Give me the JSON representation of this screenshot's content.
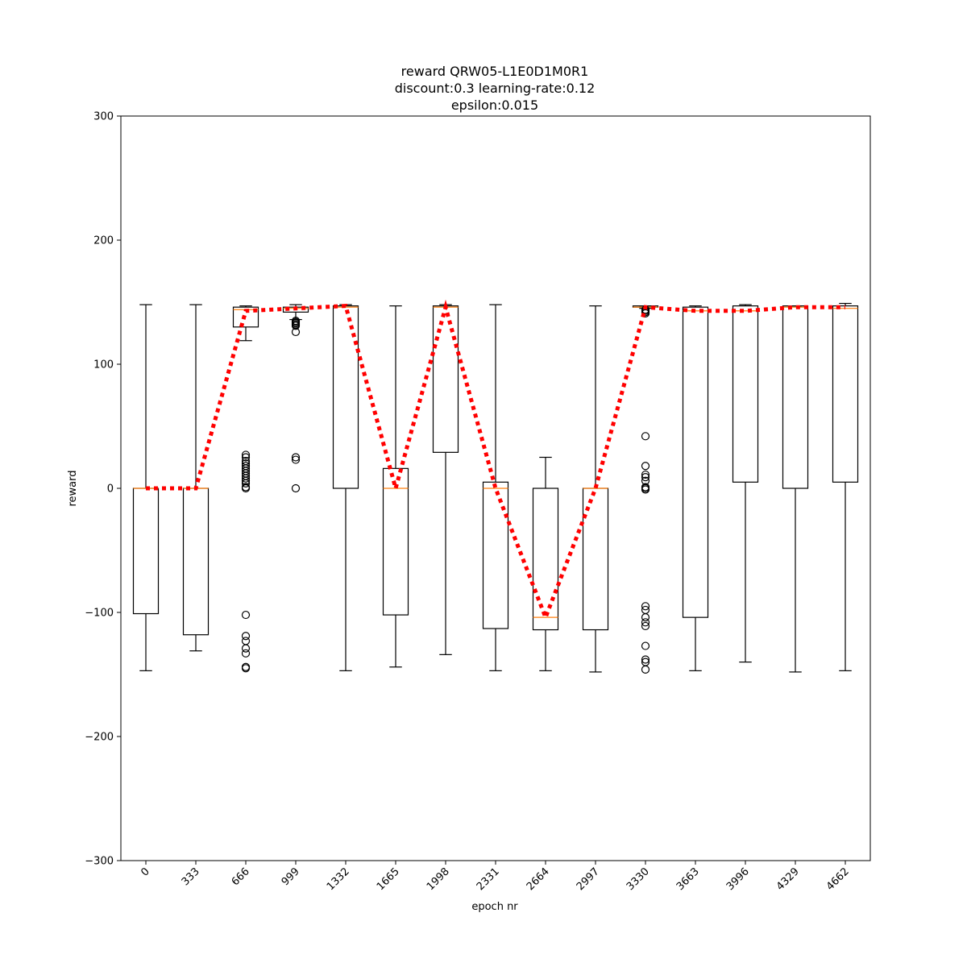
{
  "chart_data": {
    "type": "box",
    "title": [
      "reward QRW05-L1E0D1M0R1",
      "discount:0.3 learning-rate:0.12",
      "epsilon:0.015"
    ],
    "xlabel": "epoch nr",
    "ylabel": "reward",
    "ylim": [
      -300,
      300
    ],
    "yticks": [
      -300,
      -200,
      -100,
      0,
      100,
      200,
      300
    ],
    "ytick_labels": [
      "−300",
      "−200",
      "−100",
      "0",
      "100",
      "200",
      "300"
    ],
    "grid": false,
    "categories": [
      "0",
      "333",
      "666",
      "999",
      "1332",
      "1665",
      "1998",
      "2331",
      "2664",
      "2997",
      "3330",
      "3663",
      "3996",
      "4329",
      "4662"
    ],
    "boxes": [
      {
        "whislo": -147,
        "q1": -101,
        "med": 0,
        "q3": 0,
        "whishi": 148,
        "fliers": []
      },
      {
        "whislo": -131,
        "q1": -118,
        "med": 0,
        "q3": 0,
        "whishi": 148,
        "fliers": []
      },
      {
        "whislo": 119,
        "q1": 130,
        "med": 144,
        "q3": 146,
        "whishi": 147,
        "fliers": [
          27,
          25,
          22,
          20,
          18,
          16,
          14,
          12,
          10,
          8,
          6,
          4,
          1,
          0,
          -102,
          -119,
          -123,
          -129,
          -133,
          -144,
          -145
        ]
      },
      {
        "whislo": 136,
        "q1": 142,
        "med": 145,
        "q3": 146,
        "whishi": 148,
        "fliers": [
          135,
          134,
          133,
          132,
          131,
          126,
          25,
          23,
          0
        ]
      },
      {
        "whislo": -147,
        "q1": 0,
        "med": 146,
        "q3": 147,
        "whishi": 148,
        "fliers": []
      },
      {
        "whislo": -144,
        "q1": -102,
        "med": 0,
        "q3": 16,
        "whishi": 147,
        "fliers": []
      },
      {
        "whislo": -134,
        "q1": 29,
        "med": 146,
        "q3": 147,
        "whishi": 148,
        "fliers": []
      },
      {
        "whislo": -147,
        "q1": -113,
        "med": 0,
        "q3": 5,
        "whishi": 148,
        "fliers": []
      },
      {
        "whislo": -147,
        "q1": -114,
        "med": -104,
        "q3": 0,
        "whishi": 25,
        "fliers": []
      },
      {
        "whislo": -148,
        "q1": -114,
        "med": 0,
        "q3": 0,
        "whishi": 147,
        "fliers": []
      },
      {
        "whislo": 145,
        "q1": 146,
        "med": 146,
        "q3": 147,
        "whishi": 147,
        "fliers": [
          144,
          143,
          142,
          141,
          42,
          18,
          11,
          9,
          6,
          1,
          0,
          -1,
          -95,
          -98,
          -104,
          -108,
          -111,
          -127,
          -138,
          -140,
          -146
        ]
      },
      {
        "whislo": -147,
        "q1": -104,
        "med": 143,
        "q3": 146,
        "whishi": 147,
        "fliers": []
      },
      {
        "whislo": -140,
        "q1": 5,
        "med": 143,
        "q3": 147,
        "whishi": 148,
        "fliers": []
      },
      {
        "whislo": -148,
        "q1": 0,
        "med": 146,
        "q3": 147,
        "whishi": 147,
        "fliers": []
      },
      {
        "whislo": -147,
        "q1": 5,
        "med": 145,
        "q3": 147,
        "whishi": 149,
        "fliers": []
      }
    ],
    "mean_line": {
      "values": [
        0,
        0,
        143,
        145,
        147,
        0,
        146,
        0,
        -104,
        0,
        146,
        143,
        143,
        146,
        146
      ],
      "color": "#ff0000",
      "style": "dotted"
    },
    "colors": {
      "box": "#000000",
      "median": "#ff7f0e",
      "mean_line": "#ff0000"
    }
  }
}
